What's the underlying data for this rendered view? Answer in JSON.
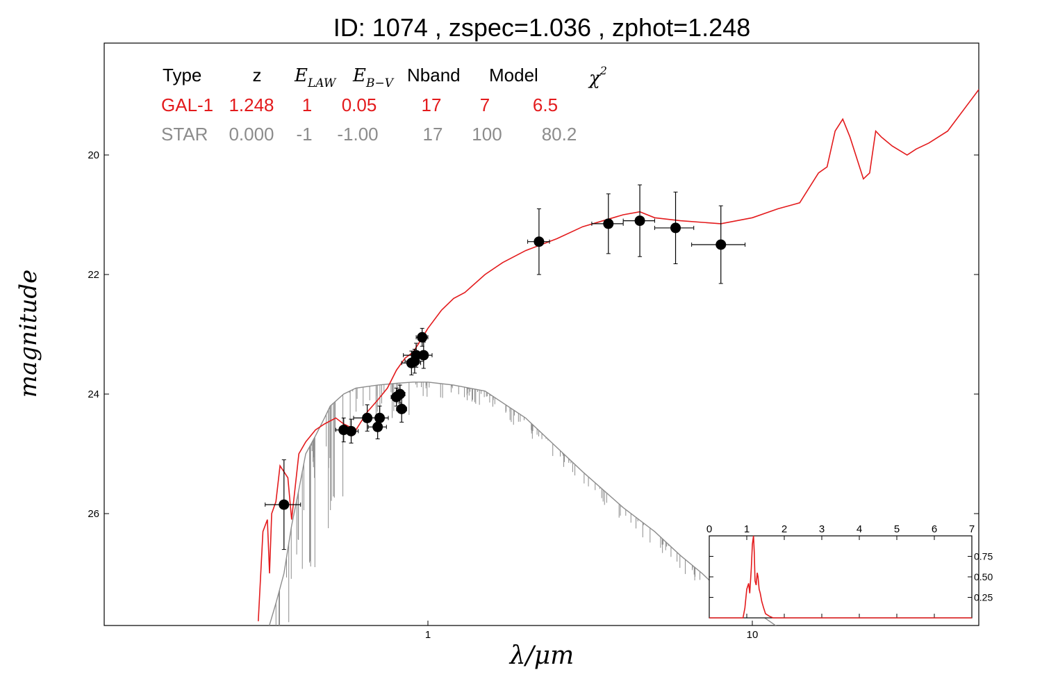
{
  "colors": {
    "galaxy": "#e31a1c",
    "star": "#8c8c8c",
    "points": "#000000",
    "axes": "#000000",
    "background": "#ffffff"
  },
  "chart_data": [
    {
      "type": "scatter",
      "title": "ID:  1074  , zspec=1.036 , zphot=1.248",
      "xlabel": "λ/μm",
      "ylabel": "magnitude",
      "x_scale": "log",
      "y_inverted": true,
      "xlim": [
        0.1,
        50
      ],
      "ylim": [
        27.8,
        18.1
      ],
      "x_ticks": [
        1,
        10
      ],
      "y_ticks": [
        20,
        22,
        24,
        26
      ],
      "legend_table": {
        "headers": [
          "Type",
          "z",
          "E_LAW",
          "E_B−V",
          "Nband",
          "Model",
          "χ²"
        ],
        "rows": [
          {
            "name": "galaxy",
            "cells": [
              "GAL-1",
              "1.248",
              "1",
              "0.05",
              "17",
              "7",
              "6.5"
            ]
          },
          {
            "name": "star",
            "cells": [
              "STAR",
              "0.000",
              "-1",
              "-1.00",
              "17",
              "100",
              "80.2"
            ]
          }
        ]
      },
      "series": [
        {
          "kind": "line",
          "role": "galaxy",
          "x": [
            0.3,
            0.31,
            0.32,
            0.325,
            0.33,
            0.34,
            0.35,
            0.36,
            0.37,
            0.38,
            0.4,
            0.42,
            0.45,
            0.48,
            0.52,
            0.55,
            0.6,
            0.65,
            0.7,
            0.75,
            0.8,
            0.85,
            0.9,
            0.95,
            1.0,
            1.1,
            1.2,
            1.3,
            1.5,
            1.7,
            2.0,
            2.5,
            3.0,
            4.0,
            4.5,
            5.0,
            6.0,
            8.0,
            10.0,
            12.0,
            14.0,
            16.0,
            17.0,
            18.0,
            19.0,
            20.0,
            22.0,
            23.0,
            24.0,
            25.0,
            27.0,
            30.0,
            32.0,
            35.0,
            40.0,
            50.0
          ],
          "y": [
            27.8,
            26.3,
            26.1,
            27.0,
            26.0,
            25.8,
            25.2,
            25.3,
            25.4,
            26.1,
            25.0,
            24.8,
            24.6,
            24.5,
            24.4,
            24.5,
            24.6,
            24.3,
            24.1,
            23.9,
            23.6,
            23.4,
            23.3,
            23.1,
            22.9,
            22.6,
            22.4,
            22.3,
            22.0,
            21.8,
            21.6,
            21.4,
            21.2,
            21.0,
            20.95,
            21.05,
            21.1,
            21.15,
            21.05,
            20.9,
            20.8,
            20.3,
            20.2,
            19.6,
            19.4,
            19.7,
            20.4,
            20.3,
            19.6,
            19.7,
            19.85,
            20.0,
            19.9,
            19.8,
            19.6,
            18.9
          ]
        },
        {
          "kind": "line",
          "role": "star",
          "x": [
            0.3,
            0.34,
            0.36,
            0.38,
            0.4,
            0.42,
            0.45,
            0.48,
            0.5,
            0.55,
            0.6,
            0.7,
            0.8,
            0.9,
            1.0,
            1.2,
            1.5,
            2.0,
            3.0,
            4.0,
            5.0,
            6.0,
            7.0,
            8.0,
            10.0,
            12.0
          ],
          "y": [
            28.5,
            27.5,
            27.0,
            26.2,
            25.6,
            25.0,
            24.7,
            24.4,
            24.2,
            24.0,
            23.9,
            23.85,
            23.82,
            23.8,
            23.8,
            23.85,
            23.95,
            24.4,
            25.3,
            25.9,
            26.3,
            26.7,
            27.0,
            27.3,
            27.6,
            27.9
          ]
        },
        {
          "kind": "points",
          "role": "photometry",
          "x": [
            0.36,
            0.55,
            0.58,
            0.65,
            0.7,
            0.71,
            0.8,
            0.82,
            0.83,
            0.89,
            0.91,
            0.92,
            0.96,
            0.97,
            2.2,
            3.6,
            4.5,
            5.8,
            8.0
          ],
          "y": [
            25.85,
            24.6,
            24.62,
            24.4,
            24.55,
            24.4,
            24.05,
            24.0,
            24.25,
            23.48,
            23.45,
            23.35,
            23.05,
            23.35,
            21.45,
            21.15,
            21.1,
            21.22,
            21.5
          ],
          "xerr": [
            0.045,
            0.03,
            0.03,
            0.06,
            0.045,
            0.045,
            0.03,
            0.03,
            0.03,
            0.06,
            0.06,
            0.08,
            0.04,
            0.06,
            0.17,
            0.4,
            0.5,
            0.8,
            1.5
          ],
          "yerr": [
            0.75,
            0.2,
            0.2,
            0.22,
            0.2,
            0.2,
            0.15,
            0.15,
            0.22,
            0.2,
            0.2,
            0.2,
            0.15,
            0.22,
            0.55,
            0.5,
            0.6,
            0.6,
            0.65
          ]
        }
      ]
    },
    {
      "type": "line",
      "role": "inset-pdz",
      "xlim": [
        0,
        7
      ],
      "ylim": [
        0,
        1.0
      ],
      "x_ticks": [
        0,
        1,
        2,
        3,
        4,
        5,
        6,
        7
      ],
      "y_ticks": [
        0.25,
        0.5,
        0.75
      ],
      "series": [
        {
          "x": [
            0,
            0.9,
            0.95,
            1.0,
            1.05,
            1.08,
            1.12,
            1.15,
            1.18,
            1.2,
            1.22,
            1.25,
            1.28,
            1.3,
            1.33,
            1.36,
            1.4,
            1.45,
            1.5,
            1.6,
            1.7,
            7.0
          ],
          "y": [
            0,
            0,
            0.12,
            0.35,
            0.42,
            0.3,
            0.6,
            0.9,
            1.0,
            0.8,
            0.45,
            0.4,
            0.55,
            0.5,
            0.35,
            0.3,
            0.2,
            0.12,
            0.05,
            0.02,
            0,
            0
          ]
        }
      ]
    }
  ],
  "main_plot": {
    "title": "ID:  1074  , zspec=1.036 , zphot=1.248",
    "xlabel": "λ/μm",
    "ylabel": "magnitude",
    "x_tick_labels": [
      "1",
      "10"
    ],
    "y_tick_labels": [
      "20",
      "22",
      "24",
      "26"
    ]
  },
  "legend": {
    "headers": {
      "type": "Type",
      "z": "z",
      "elaw": "E",
      "elaw_sub": "LAW",
      "ebv": "E",
      "ebv_sub": "B−V",
      "nband": "Nband",
      "model": "Model",
      "chi": "χ",
      "chi_sup": "2"
    },
    "galaxy": {
      "type": "GAL-1",
      "z": "1.248",
      "elaw": "1",
      "ebv": "0.05",
      "nband": "17",
      "model": "7",
      "chi": "6.5"
    },
    "star": {
      "type": "STAR",
      "z": "0.000",
      "elaw": "-1",
      "ebv": "-1.00",
      "nband": "17",
      "model": "100",
      "chi": "80.2"
    }
  },
  "inset": {
    "x_tick_labels": [
      "0",
      "1",
      "2",
      "3",
      "4",
      "5",
      "6",
      "7"
    ],
    "y_tick_labels": [
      "0.25",
      "0.50",
      "0.75"
    ]
  }
}
